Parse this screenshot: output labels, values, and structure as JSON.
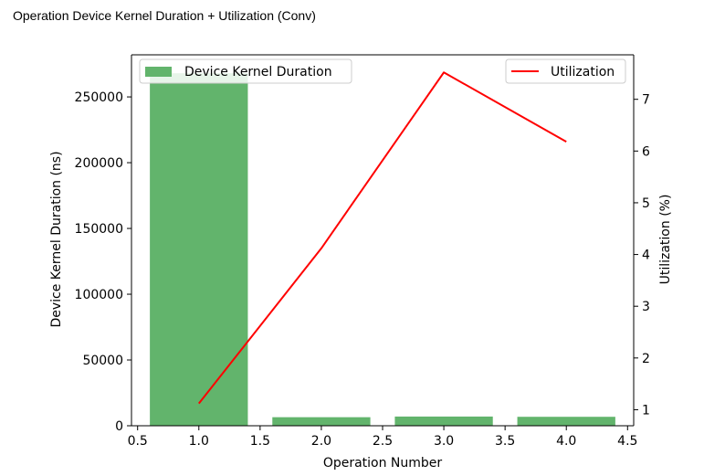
{
  "page": {
    "title": "Operation Device Kernel Duration + Utilization (Conv)"
  },
  "chart_data": {
    "type": "bar",
    "title": "Operation Device Kernel Duration + Utilization (Conv)",
    "xlabel": "Operation Number",
    "ylabel": "Device Kernel Duration (ns)",
    "y2label": "Utilization (%)",
    "xlim": [
      0.45,
      4.55
    ],
    "ylim": [
      0,
      282000
    ],
    "y2lim": [
      0.69,
      7.86
    ],
    "xticks": [
      "0.5",
      "1.0",
      "1.5",
      "2.0",
      "2.5",
      "3.0",
      "3.5",
      "4.0",
      "4.5"
    ],
    "yticks": [
      "0",
      "50000",
      "100000",
      "150000",
      "200000",
      "250000"
    ],
    "y2ticks": [
      "1",
      "2",
      "3",
      "4",
      "5",
      "6",
      "7"
    ],
    "bar_width": 0.8,
    "grid": false,
    "series": [
      {
        "name": "Device Kernel Duration",
        "kind": "bar",
        "axis": "left",
        "color": "#62b46c",
        "x": [
          1,
          2,
          3,
          4
        ],
        "values": [
          268000,
          6500,
          7000,
          6800
        ]
      },
      {
        "name": "Utilization",
        "kind": "line",
        "axis": "right",
        "color": "#ff0000",
        "x": [
          1,
          2,
          3,
          4
        ],
        "values": [
          1.12,
          4.12,
          7.52,
          6.18
        ]
      }
    ],
    "legends": [
      {
        "placement": "top-left",
        "series": "Device Kernel Duration"
      },
      {
        "placement": "top-right",
        "series": "Utilization"
      }
    ]
  }
}
